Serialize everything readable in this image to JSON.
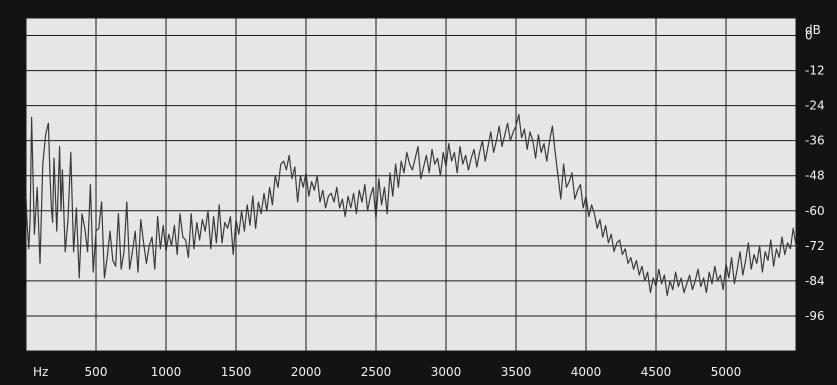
{
  "chart_data": {
    "type": "line",
    "xlabel": "Hz",
    "ylabel": "dB",
    "xlim": [
      0,
      5500
    ],
    "ylim": [
      -108,
      6
    ],
    "x_ticks": [
      "500",
      "1000",
      "1500",
      "2000",
      "2500",
      "3000",
      "3500",
      "4000",
      "4500",
      "5000"
    ],
    "y_ticks": [
      "0",
      "-12",
      "-24",
      "-36",
      "-48",
      "-60",
      "-72",
      "-84",
      "-96"
    ],
    "grid": true,
    "colors": {
      "trace": "#3a3a3a",
      "background": "#e6e6e6",
      "grid": "#1a1a1a",
      "frame": "#131313"
    },
    "series": [
      {
        "x": [
          0,
          10,
          20,
          30,
          40,
          60,
          80,
          100,
          120,
          140,
          160,
          170,
          180,
          190,
          200,
          220,
          240,
          250,
          260,
          280,
          300,
          320,
          340,
          360,
          380,
          400,
          420,
          440,
          460,
          480,
          500,
          520,
          540,
          560,
          580,
          600,
          620,
          640,
          660,
          680,
          700,
          720,
          740,
          760,
          780,
          800,
          820,
          840,
          860,
          880,
          900,
          920,
          940,
          960,
          980,
          1000,
          1020,
          1040,
          1060,
          1080,
          1100,
          1120,
          1140,
          1160,
          1180,
          1200,
          1220,
          1240,
          1260,
          1280,
          1300,
          1320,
          1340,
          1360,
          1380,
          1400,
          1420,
          1440,
          1460,
          1480,
          1500,
          1520,
          1540,
          1560,
          1580,
          1600,
          1620,
          1640,
          1660,
          1680,
          1700,
          1720,
          1740,
          1760,
          1780,
          1800,
          1820,
          1840,
          1860,
          1880,
          1900,
          1920,
          1940,
          1960,
          1980,
          2000,
          2020,
          2040,
          2060,
          2080,
          2100,
          2120,
          2140,
          2160,
          2180,
          2200,
          2220,
          2240,
          2260,
          2280,
          2300,
          2320,
          2340,
          2360,
          2380,
          2400,
          2420,
          2440,
          2460,
          2480,
          2500,
          2520,
          2540,
          2560,
          2580,
          2600,
          2620,
          2640,
          2660,
          2680,
          2700,
          2720,
          2740,
          2760,
          2780,
          2800,
          2820,
          2840,
          2860,
          2880,
          2900,
          2920,
          2940,
          2960,
          2980,
          3000,
          3020,
          3040,
          3060,
          3080,
          3100,
          3120,
          3140,
          3160,
          3180,
          3200,
          3220,
          3240,
          3260,
          3280,
          3300,
          3320,
          3340,
          3360,
          3380,
          3400,
          3420,
          3440,
          3460,
          3480,
          3500,
          3520,
          3540,
          3560,
          3580,
          3600,
          3620,
          3640,
          3660,
          3680,
          3700,
          3720,
          3740,
          3760,
          3780,
          3800,
          3820,
          3840,
          3860,
          3880,
          3900,
          3920,
          3940,
          3960,
          3980,
          4000,
          4020,
          4040,
          4060,
          4080,
          4100,
          4120,
          4140,
          4160,
          4180,
          4200,
          4220,
          4240,
          4260,
          4280,
          4300,
          4320,
          4340,
          4360,
          4380,
          4400,
          4420,
          4440,
          4460,
          4480,
          4500,
          4520,
          4540,
          4560,
          4580,
          4600,
          4620,
          4640,
          4660,
          4680,
          4700,
          4720,
          4740,
          4760,
          4780,
          4800,
          4820,
          4840,
          4860,
          4880,
          4900,
          4920,
          4940,
          4960,
          4980,
          5000,
          5020,
          5040,
          5060,
          5080,
          5100,
          5120,
          5140,
          5160,
          5180,
          5200,
          5220,
          5240,
          5260,
          5280,
          5300,
          5320,
          5340,
          5360,
          5380,
          5400,
          5420,
          5440,
          5460,
          5480,
          5500
        ],
        "values": [
          -55,
          -66,
          -73,
          -62,
          -28,
          -68,
          -52,
          -78,
          -44,
          -34,
          -30,
          -46,
          -58,
          -64,
          -42,
          -67,
          -38,
          -60,
          -46,
          -74,
          -63,
          -40,
          -74,
          -59,
          -83,
          -61,
          -66,
          -74,
          -51,
          -81,
          -67,
          -66,
          -57,
          -83,
          -76,
          -67,
          -77,
          -79,
          -61,
          -80,
          -74,
          -57,
          -80,
          -74,
          -67,
          -81,
          -63,
          -71,
          -78,
          -72,
          -69,
          -80,
          -62,
          -73,
          -65,
          -74,
          -68,
          -72,
          -65,
          -75,
          -61,
          -69,
          -70,
          -76,
          -61,
          -73,
          -64,
          -70,
          -63,
          -67,
          -60,
          -73,
          -62,
          -71,
          -58,
          -71,
          -64,
          -66,
          -62,
          -75,
          -63,
          -68,
          -60,
          -67,
          -58,
          -65,
          -55,
          -66,
          -57,
          -61,
          -54,
          -60,
          -52,
          -58,
          -48,
          -52,
          -44,
          -43,
          -46,
          -41,
          -49,
          -45,
          -57,
          -48,
          -52,
          -47,
          -55,
          -50,
          -53,
          -48,
          -57,
          -53,
          -59,
          -55,
          -54,
          -57,
          -52,
          -59,
          -56,
          -62,
          -55,
          -59,
          -54,
          -61,
          -53,
          -57,
          -51,
          -60,
          -55,
          -52,
          -63,
          -49,
          -58,
          -52,
          -61,
          -47,
          -55,
          -44,
          -52,
          -43,
          -47,
          -40,
          -44,
          -46,
          -42,
          -38,
          -49,
          -45,
          -41,
          -47,
          -39,
          -44,
          -42,
          -48,
          -40,
          -45,
          -37,
          -43,
          -40,
          -47,
          -38,
          -44,
          -41,
          -46,
          -42,
          -39,
          -45,
          -40,
          -36,
          -43,
          -38,
          -33,
          -40,
          -36,
          -31,
          -38,
          -34,
          -30,
          -36,
          -33,
          -31,
          -27,
          -35,
          -32,
          -39,
          -33,
          -36,
          -42,
          -34,
          -40,
          -37,
          -43,
          -36,
          -31,
          -40,
          -48,
          -56,
          -44,
          -52,
          -50,
          -47,
          -56,
          -53,
          -51,
          -59,
          -55,
          -62,
          -58,
          -61,
          -66,
          -63,
          -69,
          -65,
          -71,
          -68,
          -74,
          -71,
          -70,
          -75,
          -73,
          -78,
          -76,
          -80,
          -77,
          -82,
          -79,
          -84,
          -81,
          -88,
          -83,
          -86,
          -80,
          -85,
          -82,
          -89,
          -84,
          -87,
          -81,
          -86,
          -83,
          -88,
          -85,
          -82,
          -87,
          -84,
          -80,
          -86,
          -83,
          -88,
          -81,
          -85,
          -79,
          -84,
          -82,
          -87,
          -78,
          -83,
          -76,
          -85,
          -80,
          -74,
          -82,
          -77,
          -71,
          -80,
          -75,
          -78,
          -72,
          -81,
          -74,
          -77,
          -70,
          -79,
          -73,
          -76,
          -69,
          -75,
          -71,
          -73,
          -66,
          -72
        ]
      }
    ]
  }
}
